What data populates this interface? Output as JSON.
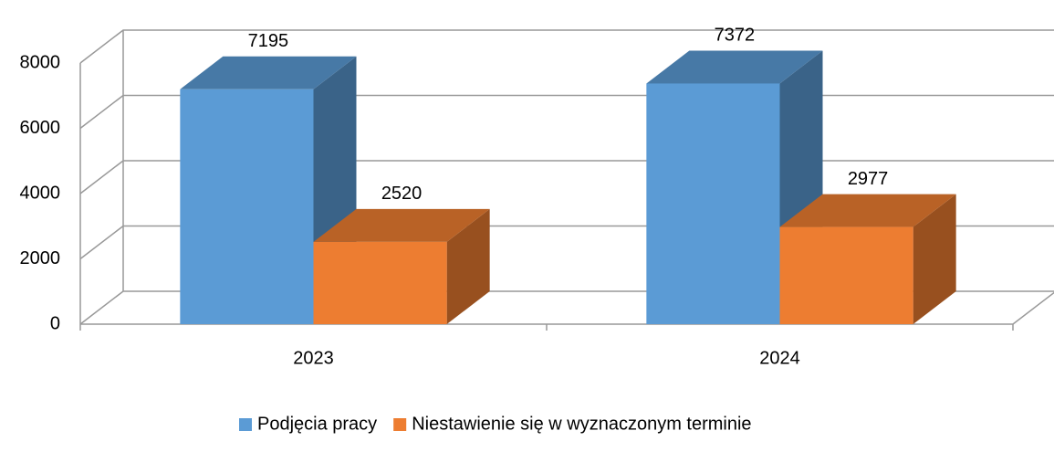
{
  "chart_data": {
    "type": "bar3d",
    "categories": [
      "2023",
      "2024"
    ],
    "series": [
      {
        "name": "Podjęcia pracy",
        "color": "#5b9bd5",
        "values": [
          7195,
          7372
        ]
      },
      {
        "name": "Niestawienie się w wyznaczonym terminie",
        "color": "#ed7d31",
        "values": [
          2520,
          2977
        ]
      }
    ],
    "ylim": [
      0,
      8000
    ],
    "yticks": [
      0,
      2000,
      4000,
      6000,
      8000
    ],
    "grid": true,
    "legend": "bottom"
  }
}
